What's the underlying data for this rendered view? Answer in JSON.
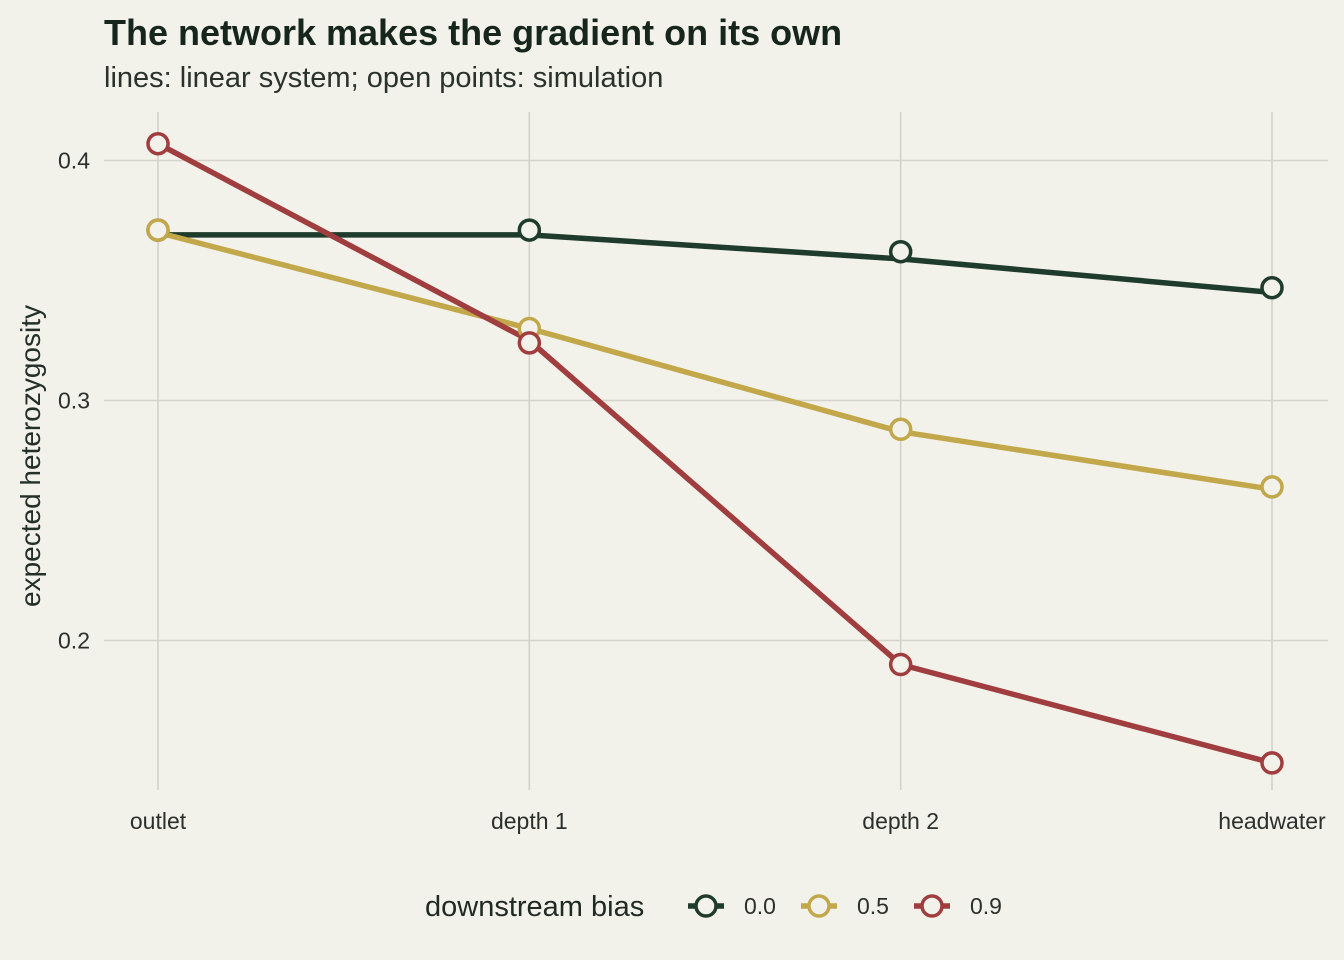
{
  "title": "The network makes the gradient on its own",
  "subtitle": "lines: linear system; open points: simulation",
  "colors": {
    "background": "#f2f1ea",
    "grid": "#d3d3c9",
    "bias_0_0": "#1f3b2b",
    "bias_0_5": "#c2a84a",
    "bias_0_9": "#a03d3e"
  },
  "chart_data": {
    "type": "line",
    "title": "The network makes the gradient on its own",
    "subtitle": "lines: linear system; open points: simulation",
    "xlabel": "",
    "ylabel": "expected heterozygosity",
    "categories": [
      "outlet",
      "depth 1",
      "depth 2",
      "headwater"
    ],
    "yticks": [
      0.2,
      0.3,
      0.4
    ],
    "ytick_labels": [
      "0.2",
      "0.3",
      "0.4"
    ],
    "ylim": [
      0.142,
      0.419
    ],
    "grid": true,
    "legend": {
      "title": "downstream bias",
      "placement": "bottom",
      "entries": [
        "0.0",
        "0.5",
        "0.9"
      ]
    },
    "series": [
      {
        "name": "0.0",
        "color": "#1f3b2b",
        "line": [
          0.369,
          0.369,
          0.359,
          0.345
        ],
        "points": [
          0.371,
          0.371,
          0.362,
          0.347
        ]
      },
      {
        "name": "0.5",
        "color": "#c2a84a",
        "line": [
          0.37,
          0.33,
          0.287,
          0.263
        ],
        "points": [
          0.371,
          0.33,
          0.288,
          0.264
        ]
      },
      {
        "name": "0.9",
        "color": "#a03d3e",
        "line": [
          0.407,
          0.325,
          0.19,
          0.149
        ],
        "points": [
          0.407,
          0.324,
          0.19,
          0.149
        ]
      }
    ]
  }
}
